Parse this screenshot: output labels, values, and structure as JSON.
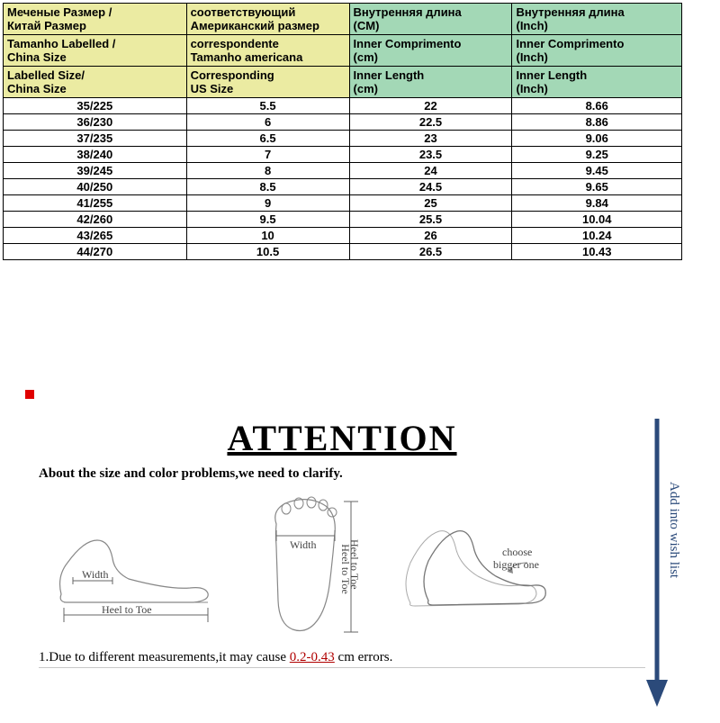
{
  "table": {
    "header_bg_left": "#ebeba2",
    "header_bg_right": "#a3d8b6",
    "border_color": "#000000",
    "headers": {
      "ru": {
        "c1a": "Меченые Размер /",
        "c1b": "Китай Размер",
        "c2a": "соответствующий",
        "c2b": "Американский размер",
        "c3a": "Внутренняя длина",
        "c3b": "(CM)",
        "c4a": "Внутренняя длина",
        "c4b": "(Inch)"
      },
      "pt": {
        "c1a": "Tamanho Labelled /",
        "c1b": "China Size",
        "c2a": "correspondente",
        "c2b": "Tamanho americana",
        "c3a": "Inner Comprimento",
        "c3b": "(cm)",
        "c4a": "Inner Comprimento",
        "c4b": "(Inch)"
      },
      "en": {
        "c1a": "Labelled Size/",
        "c1b": "China Size",
        "c2a": "Corresponding",
        "c2b": "US Size",
        "c3a": "Inner Length",
        "c3b": "(cm)",
        "c4a": "Inner Length",
        "c4b": "(Inch)"
      }
    },
    "rows": [
      {
        "size": "35/225",
        "us": "5.5",
        "cm": "22",
        "inch": "8.66"
      },
      {
        "size": "36/230",
        "us": "6",
        "cm": "22.5",
        "inch": "8.86"
      },
      {
        "size": "37/235",
        "us": "6.5",
        "cm": "23",
        "inch": "9.06"
      },
      {
        "size": "38/240",
        "us": "7",
        "cm": "23.5",
        "inch": "9.25"
      },
      {
        "size": "39/245",
        "us": "8",
        "cm": "24",
        "inch": "9.45"
      },
      {
        "size": "40/250",
        "us": "8.5",
        "cm": "24.5",
        "inch": "9.65"
      },
      {
        "size": "41/255",
        "us": "9",
        "cm": "25",
        "inch": "9.84"
      },
      {
        "size": "42/260",
        "us": "9.5",
        "cm": "25.5",
        "inch": "10.04"
      },
      {
        "size": "43/265",
        "us": "10",
        "cm": "26",
        "inch": "10.24"
      },
      {
        "size": "44/270",
        "us": "10.5",
        "cm": "26.5",
        "inch": "10.43"
      }
    ],
    "col_widths_pct": [
      27,
      24,
      24,
      25
    ]
  },
  "attention": {
    "title": "ATTENTION",
    "subtitle": "About the size and color problems,we need to clarify.",
    "note_prefix": "1.Due to different measurements,it may cause ",
    "note_error": "0.2-0.43",
    "note_suffix": " cm errors.",
    "diagram_labels": {
      "width": "Width",
      "heel_to_toe": "Heel to Toe",
      "choose_bigger": "choose",
      "choose_bigger2": "bigger one"
    },
    "arrow_color": "#2b4a7a",
    "wishlist_text": "Add into wish list"
  }
}
